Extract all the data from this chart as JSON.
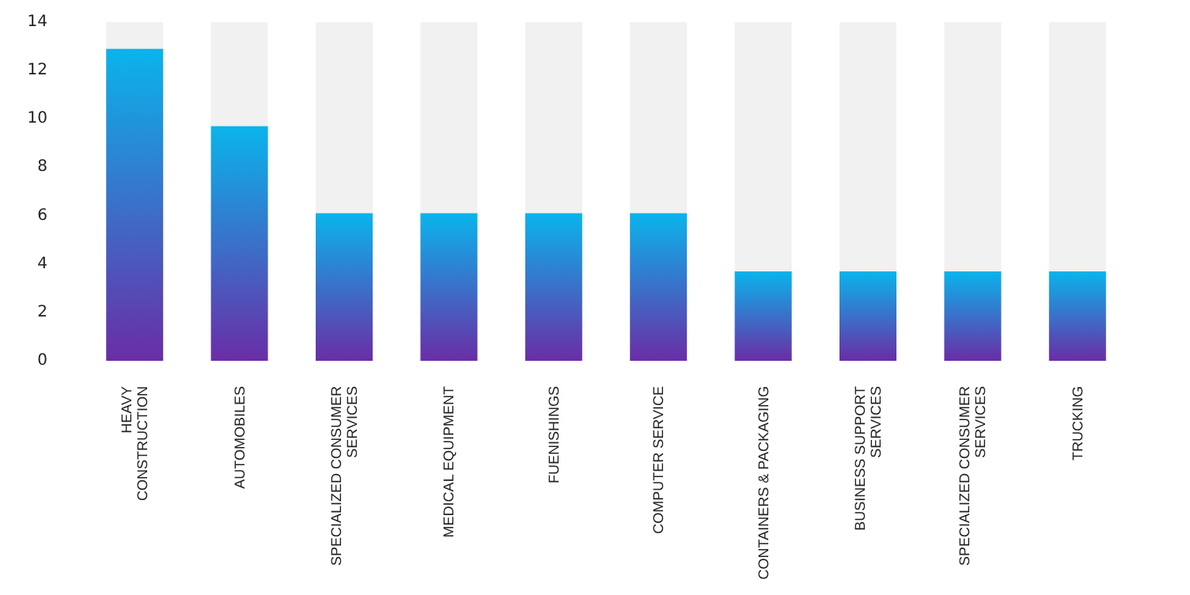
{
  "chart_data": {
    "type": "bar",
    "categories": [
      "HEAVY\nCONSTRUCTION",
      "AUTOMOBILES",
      "SPECIALIZED CONSUMER\nSERVICES",
      "MEDICAL EQUIPMENT",
      "FUENISHINGS",
      "COMPUTER SERVICE",
      "CONTAINERS & PACKAGING",
      "BUSINESS SUPPORT\nSERVICES",
      "SPECIALIZED CONSUMER\nSERVICES",
      "TRUCKING"
    ],
    "values": [
      12.9,
      9.7,
      6.1,
      6.1,
      6.1,
      6.1,
      3.7,
      3.7,
      3.7,
      3.7
    ],
    "color": "#0ab4ec",
    "ylim": [
      0,
      14
    ],
    "yticks": [
      0,
      2,
      4,
      6,
      8,
      10,
      12,
      14
    ],
    "grid": false
  }
}
